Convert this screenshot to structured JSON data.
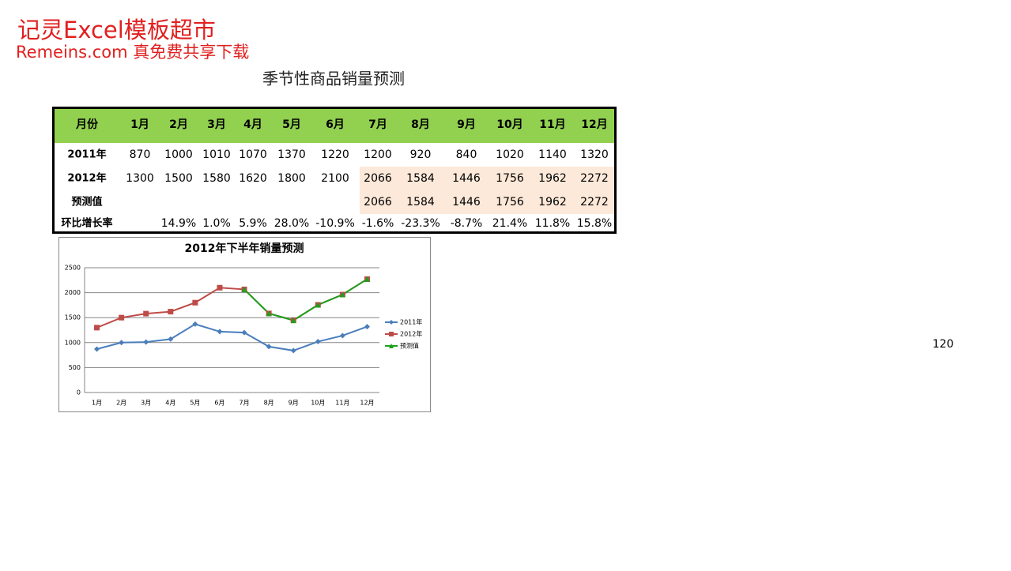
{
  "header": {
    "brand": "记灵Excel模板超市",
    "tagline": "Remeins.com 真免费共享下载"
  },
  "title": "季节性商品销量预测",
  "table": {
    "header": [
      "月份",
      "1月",
      "2月",
      "3月",
      "4月",
      "5月",
      "6月",
      "7月",
      "8月",
      "9月",
      "10月",
      "11月",
      "12月"
    ],
    "rows": [
      [
        "2011年",
        "870",
        "1000",
        "1010",
        "1070",
        "1370",
        "1220",
        "1200",
        "920",
        "840",
        "1020",
        "1140",
        "1320"
      ],
      [
        "2012年",
        "1300",
        "1500",
        "1580",
        "1620",
        "1800",
        "2100",
        "2066",
        "1584",
        "1446",
        "1756",
        "1962",
        "2272"
      ],
      [
        "预测值",
        null,
        null,
        null,
        null,
        null,
        null,
        "2066",
        "1584",
        "1446",
        "1756",
        "1962",
        "2272"
      ],
      [
        "环比增长率",
        null,
        "14.9%",
        "1.0%",
        "5.9%",
        "28.0%",
        "-10.9%",
        "-1.6%",
        "-23.3%",
        "-8.7%",
        "21.4%",
        "11.8%",
        "15.8%"
      ]
    ]
  },
  "chart_data": {
    "type": "line",
    "title": "2012年下半年销量预测",
    "categories": [
      "1月",
      "2月",
      "3月",
      "4月",
      "5月",
      "6月",
      "7月",
      "8月",
      "9月",
      "10月",
      "11月",
      "12月"
    ],
    "series": [
      {
        "name": "2011年",
        "color": "#4a7ebb",
        "marker": "diamond",
        "values": [
          870,
          1000,
          1010,
          1070,
          1370,
          1220,
          1200,
          920,
          840,
          1020,
          1140,
          1320
        ]
      },
      {
        "name": "2012年",
        "color": "#be4b48",
        "marker": "square",
        "values": [
          1300,
          1500,
          1580,
          1620,
          1800,
          2100,
          2066,
          1584,
          1446,
          1756,
          1962,
          2272
        ]
      },
      {
        "name": "预测值",
        "color": "#1ca11c",
        "marker": "triangle",
        "values": [
          null,
          null,
          null,
          null,
          null,
          null,
          2066,
          1584,
          1446,
          1756,
          1962,
          2272
        ]
      }
    ],
    "ylim": [
      0,
      2500
    ],
    "yticks": [
      0,
      500,
      1000,
      1500,
      2000,
      2500
    ],
    "grid": true,
    "legend": "right"
  },
  "page_number": "120"
}
